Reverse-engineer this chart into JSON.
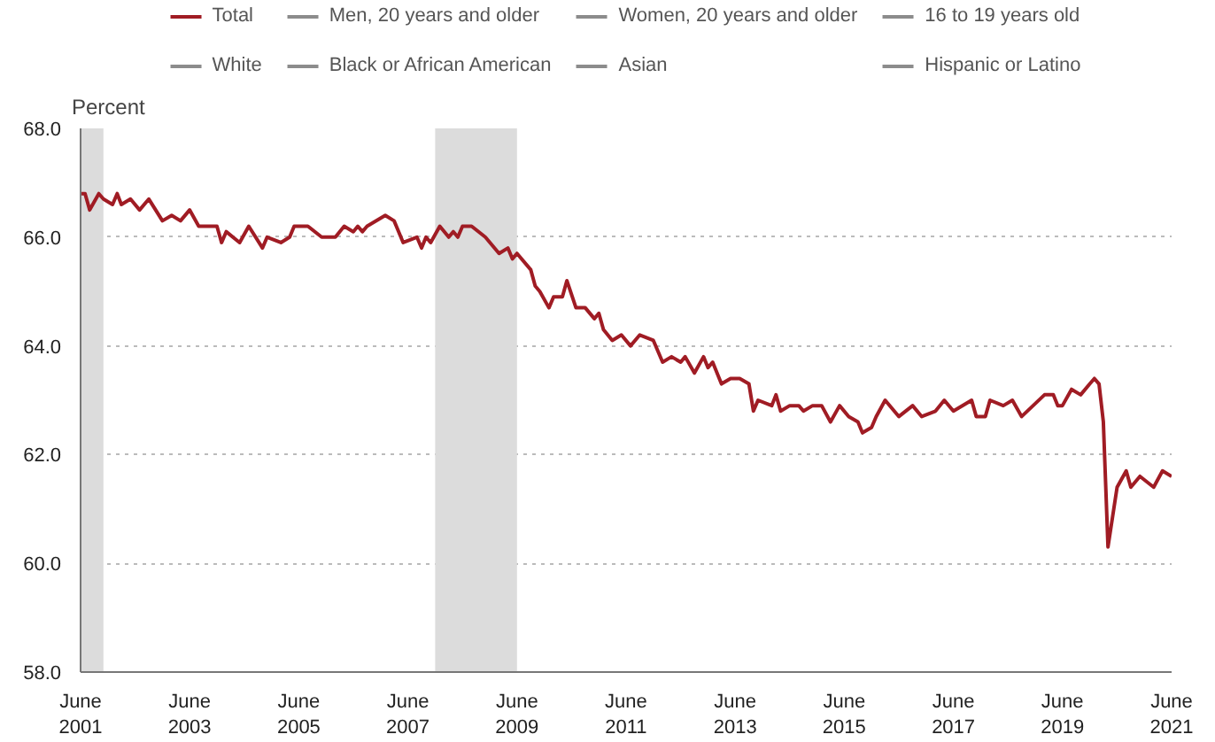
{
  "chart_data": {
    "type": "line",
    "ylabel": "Percent",
    "x": [
      "2001-06",
      "2001-07",
      "2001-08",
      "2001-10",
      "2001-11",
      "2002-01",
      "2002-02",
      "2002-03",
      "2002-05",
      "2002-07",
      "2002-09",
      "2002-12",
      "2003-02",
      "2003-04",
      "2003-06",
      "2003-08",
      "2003-12",
      "2004-01",
      "2004-02",
      "2004-05",
      "2004-07",
      "2004-10",
      "2004-11",
      "2005-02",
      "2005-04",
      "2005-05",
      "2005-08",
      "2005-11",
      "2006-02",
      "2006-04",
      "2006-06",
      "2006-07",
      "2006-08",
      "2006-09",
      "2007-01",
      "2007-03",
      "2007-05",
      "2007-08",
      "2007-09",
      "2007-10",
      "2007-11",
      "2008-01",
      "2008-03",
      "2008-04",
      "2008-05",
      "2008-06",
      "2008-08",
      "2008-11",
      "2009-02",
      "2009-04",
      "2009-05",
      "2009-06",
      "2009-09",
      "2009-10",
      "2009-11",
      "2010-01",
      "2010-02",
      "2010-04",
      "2010-05",
      "2010-07",
      "2010-09",
      "2010-11",
      "2010-12",
      "2011-01",
      "2011-03",
      "2011-05",
      "2011-07",
      "2011-09",
      "2011-12",
      "2012-02",
      "2012-04",
      "2012-06",
      "2012-07",
      "2012-09",
      "2012-11",
      "2012-12",
      "2013-01",
      "2013-03",
      "2013-05",
      "2013-07",
      "2013-09",
      "2013-10",
      "2013-11",
      "2014-02",
      "2014-03",
      "2014-04",
      "2014-06",
      "2014-08",
      "2014-09",
      "2014-11",
      "2015-01",
      "2015-03",
      "2015-05",
      "2015-07",
      "2015-09",
      "2015-10",
      "2015-12",
      "2016-01",
      "2016-03",
      "2016-06",
      "2016-09",
      "2016-11",
      "2017-02",
      "2017-04",
      "2017-06",
      "2017-10",
      "2017-11",
      "2018-01",
      "2018-02",
      "2018-05",
      "2018-07",
      "2018-09",
      "2019-02",
      "2019-04",
      "2019-05",
      "2019-06",
      "2019-08",
      "2019-10",
      "2019-12",
      "2020-01",
      "2020-02",
      "2020-03",
      "2020-04",
      "2020-06",
      "2020-08",
      "2020-09",
      "2020-11",
      "2021-02",
      "2021-04",
      "2021-06"
    ],
    "series": [
      {
        "name": "Total",
        "color": "#a01c24",
        "values": [
          66.8,
          66.8,
          66.5,
          66.8,
          66.7,
          66.6,
          66.8,
          66.6,
          66.7,
          66.5,
          66.7,
          66.3,
          66.4,
          66.3,
          66.5,
          66.2,
          66.2,
          65.9,
          66.1,
          65.9,
          66.2,
          65.8,
          66.0,
          65.9,
          66.0,
          66.2,
          66.2,
          66.0,
          66.0,
          66.2,
          66.1,
          66.2,
          66.1,
          66.2,
          66.4,
          66.3,
          65.9,
          66.0,
          65.8,
          66.0,
          65.9,
          66.2,
          66.0,
          66.1,
          66.0,
          66.2,
          66.2,
          66.0,
          65.7,
          65.8,
          65.6,
          65.7,
          65.4,
          65.1,
          65.0,
          64.7,
          64.9,
          64.9,
          65.2,
          64.7,
          64.7,
          64.5,
          64.6,
          64.3,
          64.1,
          64.2,
          64.0,
          64.2,
          64.1,
          63.7,
          63.8,
          63.7,
          63.8,
          63.5,
          63.8,
          63.6,
          63.7,
          63.3,
          63.4,
          63.4,
          63.3,
          62.8,
          63.0,
          62.9,
          63.1,
          62.8,
          62.9,
          62.9,
          62.8,
          62.9,
          62.9,
          62.6,
          62.9,
          62.7,
          62.6,
          62.4,
          62.5,
          62.7,
          63.0,
          62.7,
          62.9,
          62.7,
          62.8,
          63.0,
          62.8,
          63.0,
          62.7,
          62.7,
          63.0,
          62.9,
          63.0,
          62.7,
          63.1,
          63.1,
          62.9,
          62.9,
          63.2,
          63.1,
          63.3,
          63.4,
          63.3,
          62.6,
          60.3,
          61.4,
          61.7,
          61.4,
          61.6,
          61.4,
          61.7,
          61.6
        ]
      },
      {
        "name": "Men, 20 years and older",
        "color": "#8c8c8c",
        "values": [
          null,
          null,
          null,
          null,
          null,
          null,
          null,
          null,
          null,
          null,
          null,
          null,
          null,
          null,
          null,
          null,
          null,
          null,
          null,
          null,
          null,
          null,
          null,
          null,
          null,
          null,
          null,
          null,
          null,
          null,
          null,
          null,
          null,
          null,
          null,
          null,
          null,
          null,
          null,
          null,
          null,
          null,
          null,
          null,
          null,
          null,
          null,
          null,
          null,
          null,
          null,
          null,
          null,
          null,
          null,
          null,
          null,
          null,
          null,
          null,
          null,
          null,
          null,
          null,
          null,
          null,
          null,
          null,
          null,
          null,
          null,
          null,
          null,
          null,
          null,
          null,
          null,
          null,
          null,
          null,
          null,
          null,
          null,
          null,
          null,
          null,
          null,
          null,
          null,
          null,
          null,
          null,
          null,
          null,
          null,
          null,
          null,
          null,
          null,
          null,
          null,
          null,
          null,
          null,
          null,
          null,
          null,
          null,
          null,
          null,
          null,
          null,
          null,
          null,
          null,
          null,
          null,
          null,
          null,
          null,
          null,
          null,
          null,
          null,
          null,
          null,
          null,
          null,
          null,
          null
        ]
      },
      {
        "name": "Women, 20 years and older",
        "color": "#8c8c8c",
        "values": [
          null,
          null,
          null,
          null,
          null,
          null,
          null,
          null,
          null,
          null,
          null,
          null,
          null,
          null,
          null,
          null,
          null,
          null,
          null,
          null,
          null,
          null,
          null,
          null,
          null,
          null,
          null,
          null,
          null,
          null,
          null,
          null,
          null,
          null,
          null,
          null,
          null,
          null,
          null,
          null,
          null,
          null,
          null,
          null,
          null,
          null,
          null,
          null,
          null,
          null,
          null,
          null,
          null,
          null,
          null,
          null,
          null,
          null,
          null,
          null,
          null,
          null,
          null,
          null,
          null,
          null,
          null,
          null,
          null,
          null,
          null,
          null,
          null,
          null,
          null,
          null,
          null,
          null,
          null,
          null,
          null,
          null,
          null,
          null,
          null,
          null,
          null,
          null,
          null,
          null,
          null,
          null,
          null,
          null,
          null,
          null,
          null,
          null,
          null,
          null,
          null,
          null,
          null,
          null,
          null,
          null,
          null,
          null,
          null,
          null,
          null,
          null,
          null,
          null,
          null,
          null,
          null,
          null,
          null,
          null,
          null,
          null,
          null,
          null,
          null,
          null,
          null,
          null,
          null,
          null
        ]
      },
      {
        "name": "16 to 19 years old",
        "color": "#8c8c8c",
        "values": [
          null,
          null,
          null,
          null,
          null,
          null,
          null,
          null,
          null,
          null,
          null,
          null,
          null,
          null,
          null,
          null,
          null,
          null,
          null,
          null,
          null,
          null,
          null,
          null,
          null,
          null,
          null,
          null,
          null,
          null,
          null,
          null,
          null,
          null,
          null,
          null,
          null,
          null,
          null,
          null,
          null,
          null,
          null,
          null,
          null,
          null,
          null,
          null,
          null,
          null,
          null,
          null,
          null,
          null,
          null,
          null,
          null,
          null,
          null,
          null,
          null,
          null,
          null,
          null,
          null,
          null,
          null,
          null,
          null,
          null,
          null,
          null,
          null,
          null,
          null,
          null,
          null,
          null,
          null,
          null,
          null,
          null,
          null,
          null,
          null,
          null,
          null,
          null,
          null,
          null,
          null,
          null,
          null,
          null,
          null,
          null,
          null,
          null,
          null,
          null,
          null,
          null,
          null,
          null,
          null,
          null,
          null,
          null,
          null,
          null,
          null,
          null,
          null,
          null,
          null,
          null,
          null,
          null,
          null,
          null,
          null,
          null,
          null,
          null,
          null,
          null,
          null,
          null,
          null,
          null
        ]
      },
      {
        "name": "White",
        "color": "#8c8c8c",
        "values": [
          null,
          null,
          null,
          null,
          null,
          null,
          null,
          null,
          null,
          null,
          null,
          null,
          null,
          null,
          null,
          null,
          null,
          null,
          null,
          null,
          null,
          null,
          null,
          null,
          null,
          null,
          null,
          null,
          null,
          null,
          null,
          null,
          null,
          null,
          null,
          null,
          null,
          null,
          null,
          null,
          null,
          null,
          null,
          null,
          null,
          null,
          null,
          null,
          null,
          null,
          null,
          null,
          null,
          null,
          null,
          null,
          null,
          null,
          null,
          null,
          null,
          null,
          null,
          null,
          null,
          null,
          null,
          null,
          null,
          null,
          null,
          null,
          null,
          null,
          null,
          null,
          null,
          null,
          null,
          null,
          null,
          null,
          null,
          null,
          null,
          null,
          null,
          null,
          null,
          null,
          null,
          null,
          null,
          null,
          null,
          null,
          null,
          null,
          null,
          null,
          null,
          null,
          null,
          null,
          null,
          null,
          null,
          null,
          null,
          null,
          null,
          null,
          null,
          null,
          null,
          null,
          null,
          null,
          null,
          null,
          null,
          null,
          null,
          null,
          null,
          null,
          null,
          null,
          null,
          null
        ]
      },
      {
        "name": "Black or African American",
        "color": "#8c8c8c",
        "values": [
          null,
          null,
          null,
          null,
          null,
          null,
          null,
          null,
          null,
          null,
          null,
          null,
          null,
          null,
          null,
          null,
          null,
          null,
          null,
          null,
          null,
          null,
          null,
          null,
          null,
          null,
          null,
          null,
          null,
          null,
          null,
          null,
          null,
          null,
          null,
          null,
          null,
          null,
          null,
          null,
          null,
          null,
          null,
          null,
          null,
          null,
          null,
          null,
          null,
          null,
          null,
          null,
          null,
          null,
          null,
          null,
          null,
          null,
          null,
          null,
          null,
          null,
          null,
          null,
          null,
          null,
          null,
          null,
          null,
          null,
          null,
          null,
          null,
          null,
          null,
          null,
          null,
          null,
          null,
          null,
          null,
          null,
          null,
          null,
          null,
          null,
          null,
          null,
          null,
          null,
          null,
          null,
          null,
          null,
          null,
          null,
          null,
          null,
          null,
          null,
          null,
          null,
          null,
          null,
          null,
          null,
          null,
          null,
          null,
          null,
          null,
          null,
          null,
          null,
          null,
          null,
          null,
          null,
          null,
          null,
          null,
          null,
          null,
          null,
          null,
          null,
          null,
          null,
          null,
          null
        ]
      },
      {
        "name": "Asian",
        "color": "#8c8c8c",
        "values": [
          null,
          null,
          null,
          null,
          null,
          null,
          null,
          null,
          null,
          null,
          null,
          null,
          null,
          null,
          null,
          null,
          null,
          null,
          null,
          null,
          null,
          null,
          null,
          null,
          null,
          null,
          null,
          null,
          null,
          null,
          null,
          null,
          null,
          null,
          null,
          null,
          null,
          null,
          null,
          null,
          null,
          null,
          null,
          null,
          null,
          null,
          null,
          null,
          null,
          null,
          null,
          null,
          null,
          null,
          null,
          null,
          null,
          null,
          null,
          null,
          null,
          null,
          null,
          null,
          null,
          null,
          null,
          null,
          null,
          null,
          null,
          null,
          null,
          null,
          null,
          null,
          null,
          null,
          null,
          null,
          null,
          null,
          null,
          null,
          null,
          null,
          null,
          null,
          null,
          null,
          null,
          null,
          null,
          null,
          null,
          null,
          null,
          null,
          null,
          null,
          null,
          null,
          null,
          null,
          null,
          null,
          null,
          null,
          null,
          null,
          null,
          null,
          null,
          null,
          null,
          null,
          null,
          null,
          null,
          null,
          null,
          null,
          null,
          null,
          null,
          null,
          null,
          null,
          null,
          null
        ]
      },
      {
        "name": "Hispanic or Latino",
        "color": "#8c8c8c",
        "values": [
          null,
          null,
          null,
          null,
          null,
          null,
          null,
          null,
          null,
          null,
          null,
          null,
          null,
          null,
          null,
          null,
          null,
          null,
          null,
          null,
          null,
          null,
          null,
          null,
          null,
          null,
          null,
          null,
          null,
          null,
          null,
          null,
          null,
          null,
          null,
          null,
          null,
          null,
          null,
          null,
          null,
          null,
          null,
          null,
          null,
          null,
          null,
          null,
          null,
          null,
          null,
          null,
          null,
          null,
          null,
          null,
          null,
          null,
          null,
          null,
          null,
          null,
          null,
          null,
          null,
          null,
          null,
          null,
          null,
          null,
          null,
          null,
          null,
          null,
          null,
          null,
          null,
          null,
          null,
          null,
          null,
          null,
          null,
          null,
          null,
          null,
          null,
          null,
          null,
          null,
          null,
          null,
          null,
          null,
          null,
          null,
          null,
          null,
          null,
          null,
          null,
          null,
          null,
          null,
          null,
          null,
          null,
          null,
          null,
          null,
          null,
          null,
          null,
          null,
          null,
          null,
          null,
          null,
          null,
          null,
          null,
          null,
          null,
          null,
          null,
          null,
          null,
          null,
          null,
          null
        ]
      }
    ],
    "xlim": [
      "2001-06",
      "2021-06"
    ],
    "xticks": [
      {
        "value": "2001-06",
        "label": "June\n2001"
      },
      {
        "value": "2003-06",
        "label": "June\n2003"
      },
      {
        "value": "2005-06",
        "label": "June\n2005"
      },
      {
        "value": "2007-06",
        "label": "June\n2007"
      },
      {
        "value": "2009-06",
        "label": "June\n2009"
      },
      {
        "value": "2011-06",
        "label": "June\n2011"
      },
      {
        "value": "2013-06",
        "label": "June\n2013"
      },
      {
        "value": "2015-06",
        "label": "June\n2015"
      },
      {
        "value": "2017-06",
        "label": "June\n2017"
      },
      {
        "value": "2019-06",
        "label": "June\n2019"
      },
      {
        "value": "2021-06",
        "label": "June\n2021"
      }
    ],
    "ylim": [
      58,
      68
    ],
    "yticks": [
      {
        "value": 58,
        "label": "58.0"
      },
      {
        "value": 60,
        "label": "60.0"
      },
      {
        "value": 62,
        "label": "62.0"
      },
      {
        "value": 64,
        "label": "64.0"
      },
      {
        "value": 66,
        "label": "66.0"
      },
      {
        "value": 68,
        "label": "68.0"
      }
    ],
    "bands": [
      {
        "axis": "x",
        "from": "2001-06",
        "to": "2001-11",
        "color": "#dcdcdc"
      },
      {
        "axis": "x",
        "from": "2007-12",
        "to": "2009-06",
        "color": "#dcdcdc"
      }
    ],
    "grid": "y",
    "legend": "top",
    "line_style": "solid",
    "marker": "none"
  }
}
